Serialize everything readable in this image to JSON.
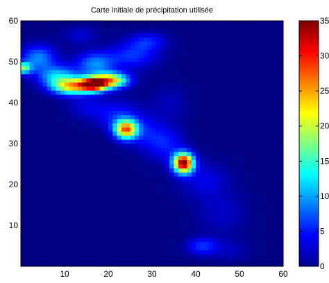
{
  "chart_data": {
    "type": "heatmap",
    "title": "Carte initiale de précipitation utilisée",
    "xlabel": "",
    "ylabel": "",
    "xlim": [
      0,
      60
    ],
    "ylim": [
      0,
      60
    ],
    "x_ticks": [
      10,
      20,
      30,
      40,
      50,
      60
    ],
    "y_ticks": [
      10,
      20,
      30,
      40,
      50,
      60
    ],
    "colorbar": {
      "clim": [
        0,
        35
      ],
      "ticks": [
        0,
        5,
        10,
        15,
        20,
        25,
        30,
        35
      ],
      "colormap": "jet",
      "location": "right"
    },
    "background_value": 0,
    "features": [
      {
        "x": 16.5,
        "y": 44.5,
        "sx": 2.2,
        "sy": 1.2,
        "peak": 32
      },
      {
        "x": 20.5,
        "y": 45.5,
        "sx": 2.8,
        "sy": 1.3,
        "peak": 23
      },
      {
        "x": 11.5,
        "y": 44.0,
        "sx": 3.0,
        "sy": 1.4,
        "peak": 21
      },
      {
        "x": 8.5,
        "y": 46.5,
        "sx": 3.2,
        "sy": 1.8,
        "peak": 11
      },
      {
        "x": 4.0,
        "y": 51.0,
        "sx": 2.8,
        "sy": 2.2,
        "peak": 9
      },
      {
        "x": 0.5,
        "y": 48.5,
        "sx": 1.3,
        "sy": 1.0,
        "peak": 16
      },
      {
        "x": 17.0,
        "y": 49.5,
        "sx": 3.0,
        "sy": 2.0,
        "peak": 9
      },
      {
        "x": 25.5,
        "y": 51.5,
        "sx": 4.0,
        "sy": 2.2,
        "peak": 6
      },
      {
        "x": 29.0,
        "y": 55.0,
        "sx": 3.0,
        "sy": 1.5,
        "peak": 5
      },
      {
        "x": 13.5,
        "y": 56.5,
        "sx": 2.5,
        "sy": 1.5,
        "peak": 3
      },
      {
        "x": 24.0,
        "y": 33.5,
        "sx": 1.8,
        "sy": 1.6,
        "peak": 26
      },
      {
        "x": 22.0,
        "y": 37.0,
        "sx": 3.5,
        "sy": 2.5,
        "peak": 5
      },
      {
        "x": 28.0,
        "y": 33.0,
        "sx": 3.0,
        "sy": 3.0,
        "peak": 4
      },
      {
        "x": 37.2,
        "y": 25.3,
        "sx": 1.6,
        "sy": 1.7,
        "peak": 35
      },
      {
        "x": 33.0,
        "y": 30.0,
        "sx": 3.0,
        "sy": 3.0,
        "peak": 5
      },
      {
        "x": 42.0,
        "y": 21.0,
        "sx": 4.0,
        "sy": 3.0,
        "peak": 3.5
      },
      {
        "x": 46.0,
        "y": 13.0,
        "sx": 4.0,
        "sy": 3.5,
        "peak": 2.5
      },
      {
        "x": 41.5,
        "y": 5.0,
        "sx": 2.5,
        "sy": 1.5,
        "peak": 6
      },
      {
        "x": 48.0,
        "y": 4.0,
        "sx": 3.0,
        "sy": 2.0,
        "peak": 2
      },
      {
        "x": 15.0,
        "y": 39.0,
        "sx": 3.0,
        "sy": 2.0,
        "peak": 3
      },
      {
        "x": 34.0,
        "y": 40.0,
        "sx": 3.0,
        "sy": 3.0,
        "peak": 2
      }
    ]
  }
}
